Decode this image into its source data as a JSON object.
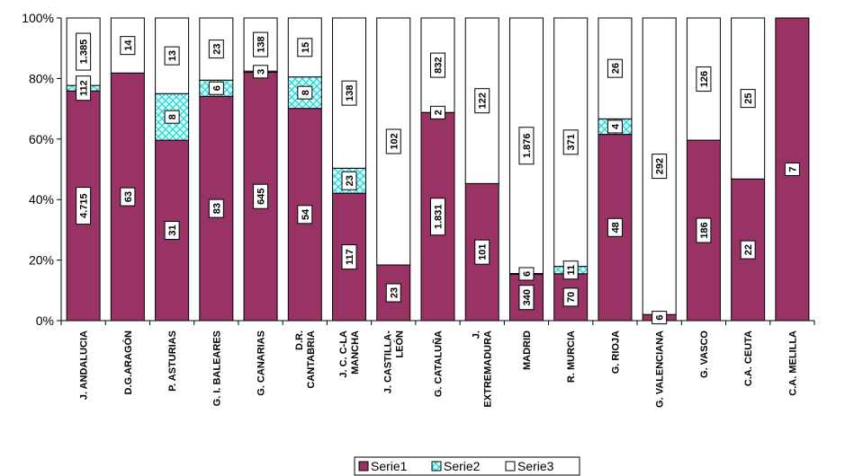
{
  "chart_data": {
    "type": "bar",
    "stacked": "percent",
    "categories": [
      [
        "J. ANDALUCIA"
      ],
      [
        "D.G.ARAGÓN"
      ],
      [
        "P. ASTURIAS"
      ],
      [
        "G. I. BALEARES"
      ],
      [
        "G. CANARIAS"
      ],
      [
        "D.R.",
        "CANTABRIA"
      ],
      [
        "J. C. C-LA",
        "MANCHA"
      ],
      [
        "J. CASTILLA-",
        "LEÓN"
      ],
      [
        "G. CATALUÑA"
      ],
      [
        "J.",
        "EXTREMADURA"
      ],
      [
        "MADRID"
      ],
      [
        "R. MURCIA"
      ],
      [
        "G. RIOJA"
      ],
      [
        "G. VALENCIANA"
      ],
      [
        "G. VASCO"
      ],
      [
        "C.A. CEUTA"
      ],
      [
        "C.A. MELILLA"
      ]
    ],
    "series": [
      {
        "name": "Serie1",
        "color": "#993366",
        "values": [
          4715,
          63,
          31,
          83,
          645,
          54,
          117,
          23,
          1831,
          101,
          340,
          70,
          48,
          6,
          186,
          22,
          7
        ],
        "labels": [
          "4.715",
          "63",
          "31",
          "83",
          "645",
          "54",
          "117",
          "23",
          "1.831",
          "101",
          "340",
          "70",
          "48",
          "6",
          "186",
          "22",
          "7"
        ]
      },
      {
        "name": "Serie2",
        "color": "#ccffff",
        "pattern": "cross-hatch",
        "values": [
          112,
          0,
          8,
          6,
          3,
          8,
          23,
          0,
          2,
          0,
          6,
          11,
          4,
          0,
          0,
          0,
          0
        ],
        "labels": [
          "112",
          "",
          "8",
          "6",
          "3",
          "8",
          "23",
          "",
          "2",
          "",
          "6",
          "11",
          "4",
          "",
          "",
          "",
          ""
        ]
      },
      {
        "name": "Serie3",
        "color": "#ffffff",
        "values": [
          1385,
          14,
          13,
          23,
          138,
          15,
          138,
          102,
          832,
          122,
          1876,
          371,
          26,
          292,
          126,
          25,
          0
        ],
        "labels": [
          "1.385",
          "14",
          "13",
          "23",
          "138",
          "15",
          "138",
          "102",
          "832",
          "122",
          "1.876",
          "371",
          "26",
          "292",
          "126",
          "25",
          ""
        ]
      }
    ],
    "y_ticks": [
      "0%",
      "20%",
      "40%",
      "60%",
      "80%",
      "100%"
    ],
    "ylim": [
      0,
      100
    ],
    "grid": false,
    "legend": "bottom"
  }
}
